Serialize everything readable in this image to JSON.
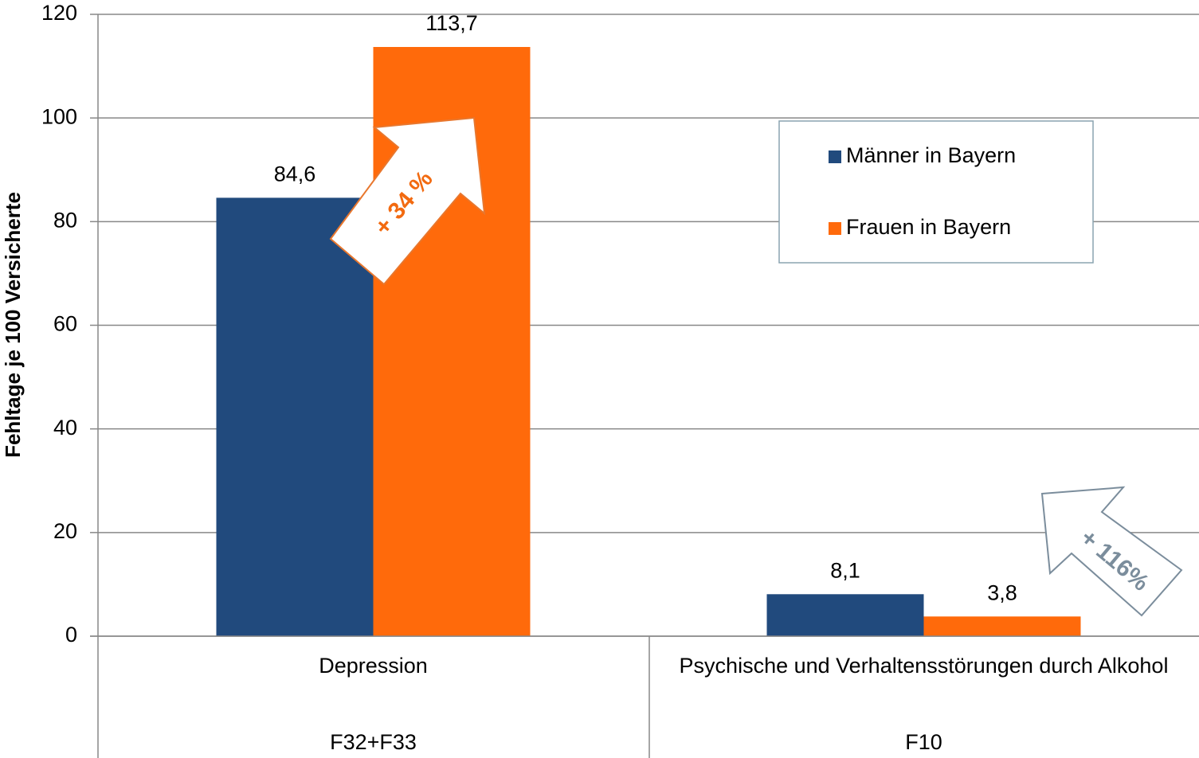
{
  "chart_data": {
    "type": "bar",
    "y_axis_label": "Fehltage je 100 Versicherte",
    "categories": [
      "Depression",
      "Psychische und Verhaltensstörungen durch Alkohol"
    ],
    "category_codes": [
      "F32+F33",
      "F10"
    ],
    "series": [
      {
        "name": "Männer in Bayern",
        "color": "#214a7d",
        "values": [
          84.6,
          8.1
        ],
        "value_labels": [
          "84,6",
          "8,1"
        ]
      },
      {
        "name": "Frauen in Bayern",
        "color": "#ff6a0b",
        "values": [
          113.7,
          3.8
        ],
        "value_labels": [
          "113,7",
          "3,8"
        ]
      }
    ],
    "ylim": [
      0,
      120
    ],
    "yticks": [
      0,
      20,
      40,
      60,
      80,
      100,
      120
    ],
    "grid": true,
    "annotations": [
      "+ 34 %",
      "+ 116%"
    ]
  }
}
